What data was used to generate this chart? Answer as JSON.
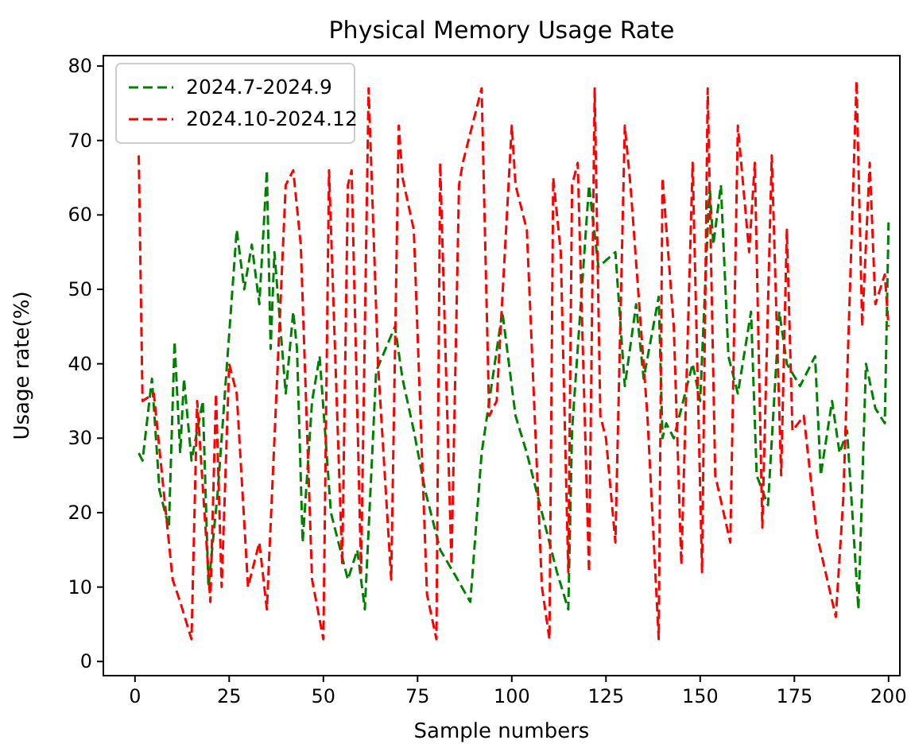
{
  "chart_data": {
    "type": "line",
    "title": "Physical Memory Usage Rate",
    "xlabel": "Sample numbers",
    "ylabel": "Usage rate(%)",
    "xlim": [
      -8.4,
      203
    ],
    "ylim": [
      -1.9,
      81.4
    ],
    "xticks": [
      0,
      25,
      50,
      75,
      100,
      125,
      150,
      175,
      200
    ],
    "yticks": [
      0,
      10,
      20,
      30,
      40,
      50,
      60,
      70,
      80
    ],
    "legend": "top left",
    "line_style": "dashed",
    "grid": false,
    "series": [
      {
        "name": "2024.7-2024.9",
        "color": "#008000",
        "x": [
          1,
          2,
          4.5,
          6.5,
          9,
          10.5,
          12,
          13,
          15,
          18,
          19.5,
          22,
          25,
          27,
          29,
          31,
          33,
          35,
          36,
          37,
          40,
          42,
          43,
          44.5,
          47,
          49,
          52,
          56.5,
          59,
          61,
          64,
          69,
          71,
          74,
          77,
          81,
          84.5,
          89,
          92,
          97.5,
          101,
          104,
          109.5,
          112,
          115,
          116,
          120.5,
          123,
          127.5,
          130,
          133,
          135,
          139,
          140,
          141,
          143,
          148,
          150,
          152.5,
          153.5,
          155.5,
          157.5,
          160,
          163.5,
          165,
          168,
          171,
          173,
          176.5,
          180.5,
          182,
          185,
          187,
          189,
          192,
          194,
          196.5,
          199,
          200
        ],
        "values": [
          28,
          27,
          38,
          23,
          18,
          43,
          28,
          38,
          27,
          35,
          10,
          23,
          44,
          58,
          50,
          56,
          48,
          66,
          42,
          55,
          36,
          47,
          42,
          16,
          35,
          41,
          20,
          11,
          15,
          7,
          39,
          45,
          38,
          31,
          23,
          15,
          12,
          8,
          28,
          47,
          33,
          28,
          17,
          12,
          7,
          31,
          64,
          53,
          55,
          37,
          48,
          38,
          49,
          30,
          32,
          30,
          40,
          35,
          64,
          56,
          64,
          41,
          36,
          47,
          25,
          21,
          47,
          40,
          37,
          41,
          25,
          35,
          28,
          31,
          7,
          40,
          34,
          32,
          59
        ]
      },
      {
        "name": "2024.10-2024.12",
        "color": "#ff0000",
        "x": [
          1,
          2,
          5,
          10,
          12,
          15,
          16.5,
          20,
          21.5,
          23,
          25,
          27,
          30,
          33,
          35,
          40,
          42,
          44,
          47,
          50,
          51.5,
          55,
          56.5,
          57.5,
          60,
          62,
          64.5,
          68,
          70,
          71,
          74,
          77.5,
          80,
          81,
          84,
          86,
          87,
          92,
          94,
          96,
          100,
          101,
          104,
          108,
          110,
          111,
          113,
          115,
          116,
          117.5,
          120.5,
          122,
          123.5,
          125,
          127.5,
          130,
          131.5,
          136,
          139,
          140,
          143,
          145,
          148,
          150.5,
          152,
          154,
          158,
          160,
          163,
          164.5,
          166.5,
          169,
          171.5,
          173,
          174.5,
          177.5,
          181,
          186,
          188,
          191.5,
          193,
          195,
          196.5,
          199,
          200
        ],
        "values": [
          68,
          35,
          36,
          11,
          8,
          3,
          35,
          8,
          36,
          10,
          40,
          36,
          10,
          16,
          7,
          64,
          66,
          56,
          11,
          3,
          66,
          13,
          64,
          66,
          12,
          77,
          40,
          11,
          72,
          65,
          58,
          9,
          3,
          67,
          13,
          64,
          67,
          77,
          33,
          35,
          72,
          64,
          58,
          10,
          3,
          65,
          55,
          12,
          64,
          67,
          12,
          77,
          33,
          30,
          16,
          72,
          64,
          33,
          3,
          65,
          45,
          13,
          67,
          12,
          77,
          25,
          16,
          72,
          55,
          67,
          18,
          68,
          25,
          58,
          31,
          33,
          17,
          6,
          22,
          78,
          45,
          67,
          48,
          52,
          45
        ]
      }
    ]
  }
}
